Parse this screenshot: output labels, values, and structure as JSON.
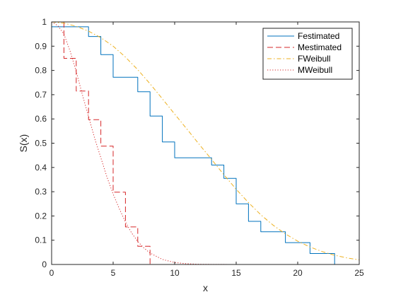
{
  "chart_data": {
    "type": "line",
    "title": "",
    "xlabel": "x",
    "ylabel": "S(x)",
    "xlim": [
      0,
      25
    ],
    "ylim": [
      0,
      1
    ],
    "xticks": [
      0,
      5,
      10,
      15,
      20,
      25
    ],
    "yticks": [
      0,
      0.1,
      0.2,
      0.3,
      0.4,
      0.5,
      0.6,
      0.7,
      0.8,
      0.9,
      1
    ],
    "xtick_labels": [
      "0",
      "5",
      "10",
      "15",
      "20",
      "25"
    ],
    "ytick_labels": [
      "0",
      "0.1",
      "0.2",
      "0.3",
      "0.4",
      "0.5",
      "0.6",
      "0.7",
      "0.8",
      "0.9",
      "1"
    ],
    "grid": false,
    "legend_position": "top-right",
    "series": [
      {
        "name": "Festimated",
        "style": "step",
        "color": "#0072bd",
        "dash": "solid",
        "x": [
          0,
          3,
          3,
          4,
          4,
          5,
          5,
          7,
          7,
          8,
          8,
          9,
          9,
          10,
          10,
          13,
          13,
          14,
          14,
          15,
          15,
          16,
          16,
          17,
          17,
          19,
          19,
          21,
          21,
          23,
          23
        ],
        "y": [
          0.98,
          0.98,
          0.94,
          0.94,
          0.865,
          0.865,
          0.772,
          0.772,
          0.712,
          0.712,
          0.612,
          0.612,
          0.505,
          0.505,
          0.44,
          0.44,
          0.41,
          0.41,
          0.355,
          0.355,
          0.25,
          0.25,
          0.178,
          0.178,
          0.135,
          0.135,
          0.09,
          0.09,
          0.045,
          0.045,
          0
        ]
      },
      {
        "name": "Mestimated",
        "style": "step",
        "color": "#d62728",
        "dash": "dashed",
        "x": [
          1,
          1,
          2,
          2,
          3,
          3,
          4,
          4,
          5,
          5,
          6,
          6,
          7,
          7,
          8,
          8
        ],
        "y": [
          1.0,
          0.85,
          0.85,
          0.715,
          0.715,
          0.597,
          0.597,
          0.488,
          0.488,
          0.298,
          0.298,
          0.155,
          0.155,
          0.075,
          0.075,
          0
        ]
      },
      {
        "name": "FWeibull",
        "style": "curve",
        "color": "#edb120",
        "dash": "dashdot",
        "x": [
          0,
          1,
          2,
          3,
          4,
          5,
          6,
          7,
          8,
          9,
          10,
          11,
          12,
          13,
          14,
          15,
          16,
          17,
          18,
          19,
          20,
          21,
          22,
          23,
          24,
          25
        ],
        "y": [
          1.0,
          0.995,
          0.982,
          0.962,
          0.935,
          0.9,
          0.855,
          0.803,
          0.745,
          0.683,
          0.62,
          0.558,
          0.495,
          0.433,
          0.37,
          0.31,
          0.255,
          0.205,
          0.162,
          0.126,
          0.096,
          0.072,
          0.053,
          0.038,
          0.027,
          0.019
        ]
      },
      {
        "name": "MWeibull",
        "style": "curve",
        "color": "#d62728",
        "dash": "dotted",
        "x": [
          0,
          0.5,
          1,
          1.5,
          2,
          2.5,
          3,
          3.5,
          4,
          4.5,
          5,
          5.5,
          6,
          6.5,
          7,
          7.5,
          8,
          9,
          10,
          11,
          12,
          13,
          14,
          15,
          16,
          17,
          18,
          19
        ],
        "y": [
          1.0,
          0.985,
          0.95,
          0.88,
          0.795,
          0.7,
          0.61,
          0.52,
          0.44,
          0.36,
          0.29,
          0.23,
          0.175,
          0.13,
          0.095,
          0.068,
          0.047,
          0.021,
          0.008,
          0.003,
          0.001,
          0.0005,
          0.0002,
          0.0001,
          0.0,
          0.0,
          0.0,
          0.0
        ]
      }
    ]
  }
}
